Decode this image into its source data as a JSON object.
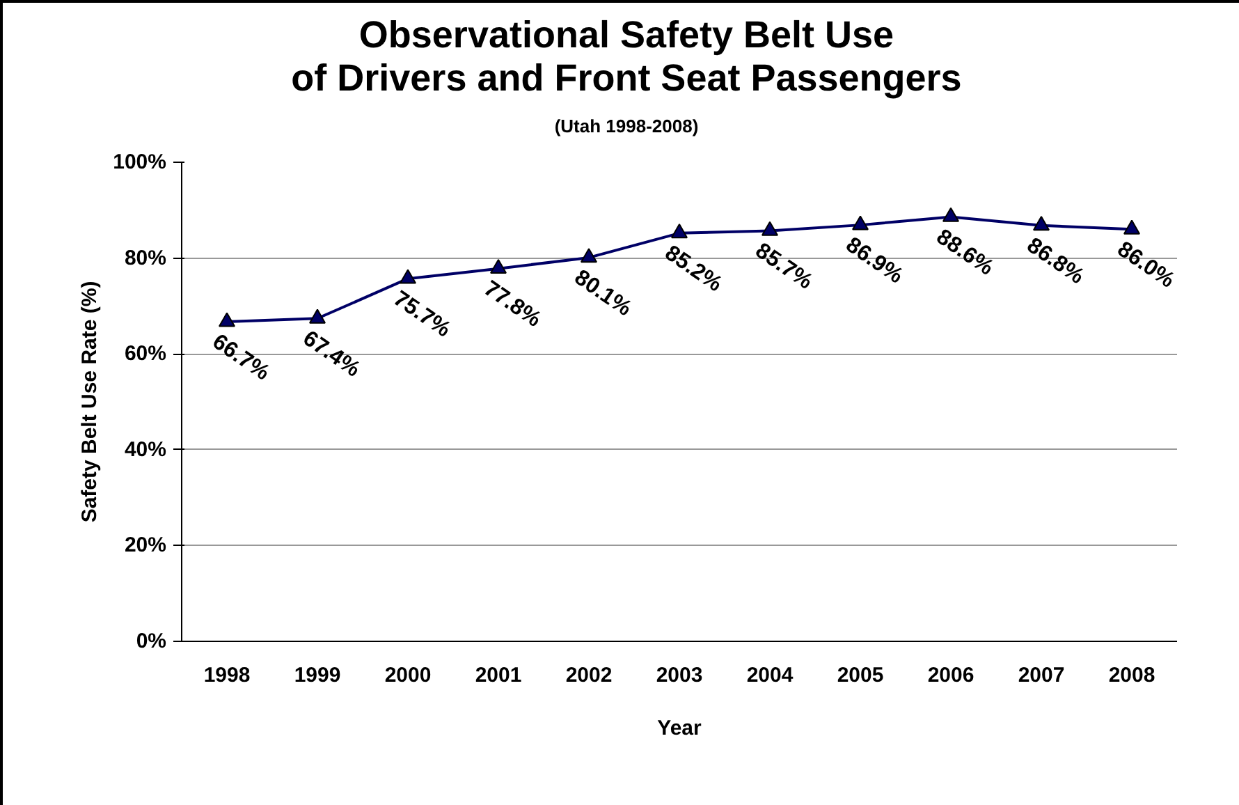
{
  "chart_data": {
    "type": "line",
    "title": "Observational Safety Belt Use\nof Drivers and Front Seat Passengers",
    "subtitle": "(Utah 1998-2008)",
    "xlabel": "Year",
    "ylabel": "Safety Belt Use Rate (%)",
    "categories": [
      "1998",
      "1999",
      "2000",
      "2001",
      "2002",
      "2003",
      "2004",
      "2005",
      "2006",
      "2007",
      "2008"
    ],
    "series": [
      {
        "color": "#000066",
        "values": [
          66.7,
          67.4,
          75.7,
          77.8,
          80.1,
          85.2,
          85.7,
          86.9,
          88.6,
          86.8,
          86.0
        ],
        "value_labels": [
          "66.7%",
          "67.4%",
          "75.7%",
          "77.8%",
          "80.1%",
          "85.2%",
          "85.7%",
          "86.9%",
          "88.6%",
          "86.8%",
          "86.0%"
        ]
      }
    ],
    "ylim": [
      0,
      100
    ],
    "yticks": [
      {
        "value": 0,
        "label": "0%"
      },
      {
        "value": 20,
        "label": "20%"
      },
      {
        "value": 40,
        "label": "40%"
      },
      {
        "value": 60,
        "label": "60%"
      },
      {
        "value": 80,
        "label": "80%"
      },
      {
        "value": 100,
        "label": "100%"
      }
    ],
    "grid": "y",
    "marker": "triangle",
    "line_style": "solid"
  }
}
